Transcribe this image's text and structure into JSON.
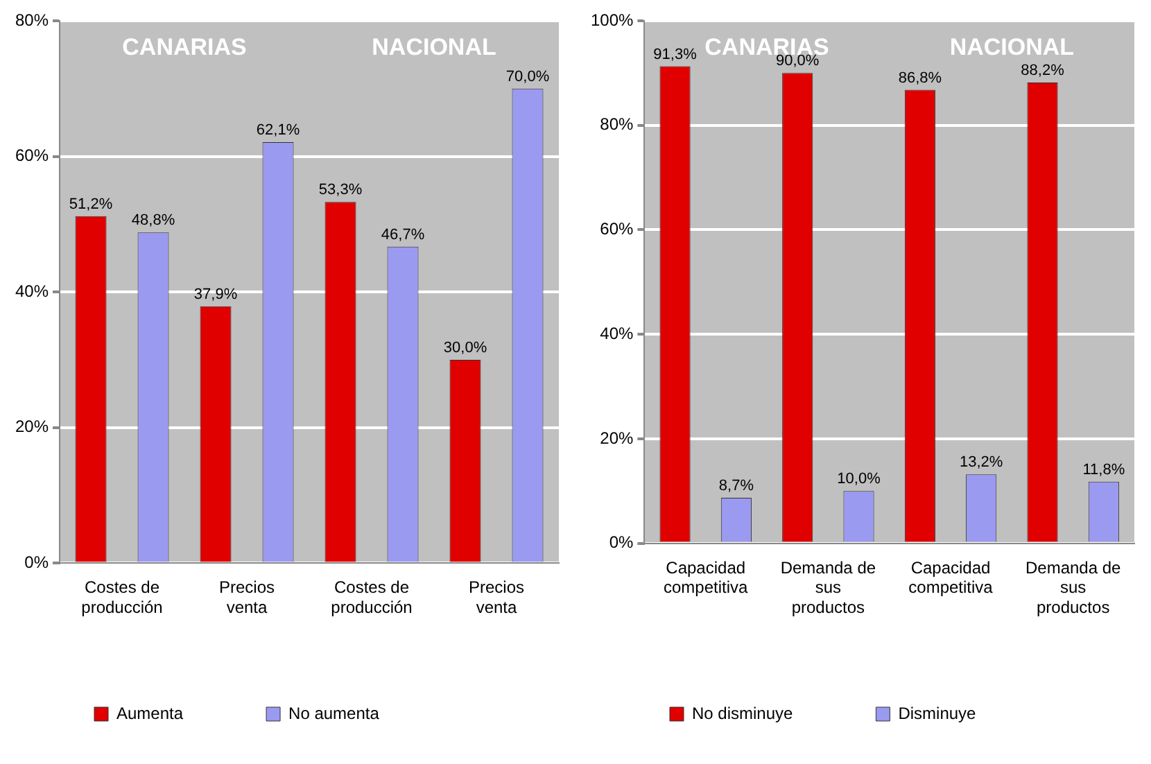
{
  "chart_data": [
    {
      "type": "bar",
      "categories": [
        "Costes de producción",
        "Precios venta",
        "Costes de producción",
        "Precios venta"
      ],
      "series": [
        {
          "name": "Aumenta",
          "color": "#e00000",
          "values": [
            51.2,
            37.9,
            53.3,
            30.0
          ],
          "value_labels": [
            "51,2%",
            "37,9%",
            "53,3%",
            "30,0%"
          ]
        },
        {
          "name": "No aumenta",
          "color": "#9a9af0",
          "values": [
            48.8,
            62.1,
            46.7,
            70.0
          ],
          "value_labels": [
            "48,8%",
            "62,1%",
            "46,7%",
            "70,0%"
          ]
        }
      ],
      "ylim": [
        0,
        80
      ],
      "yticks": [
        {
          "value": 0,
          "label": "0%"
        },
        {
          "value": 20,
          "label": "20%"
        },
        {
          "value": 40,
          "label": "40%"
        },
        {
          "value": 60,
          "label": "60%"
        },
        {
          "value": 80,
          "label": "80%"
        }
      ],
      "grid": "y",
      "legend": "bottom",
      "annotations": [
        "CANARIAS",
        "NACIONAL"
      ]
    },
    {
      "type": "bar",
      "categories": [
        "Capacidad competitiva",
        "Demanda de sus productos",
        "Capacidad competitiva",
        "Demanda de sus productos"
      ],
      "series": [
        {
          "name": "No disminuye",
          "color": "#e00000",
          "values": [
            91.3,
            90.0,
            86.8,
            88.2
          ],
          "value_labels": [
            "91,3%",
            "90,0%",
            "86,8%",
            "88,2%"
          ]
        },
        {
          "name": "Disminuye",
          "color": "#9a9af0",
          "values": [
            8.7,
            10.0,
            13.2,
            11.8
          ],
          "value_labels": [
            "8,7%",
            "10,0%",
            "13,2%",
            "11,8%"
          ]
        }
      ],
      "ylim": [
        0,
        100
      ],
      "yticks": [
        {
          "value": 0,
          "label": "0%"
        },
        {
          "value": 20,
          "label": "20%"
        },
        {
          "value": 40,
          "label": "40%"
        },
        {
          "value": 60,
          "label": "60%"
        },
        {
          "value": 80,
          "label": "80%"
        },
        {
          "value": 100,
          "label": "100%"
        }
      ],
      "grid": "y",
      "legend": "bottom",
      "annotations": [
        "CANARIAS",
        "NACIONAL"
      ]
    }
  ]
}
